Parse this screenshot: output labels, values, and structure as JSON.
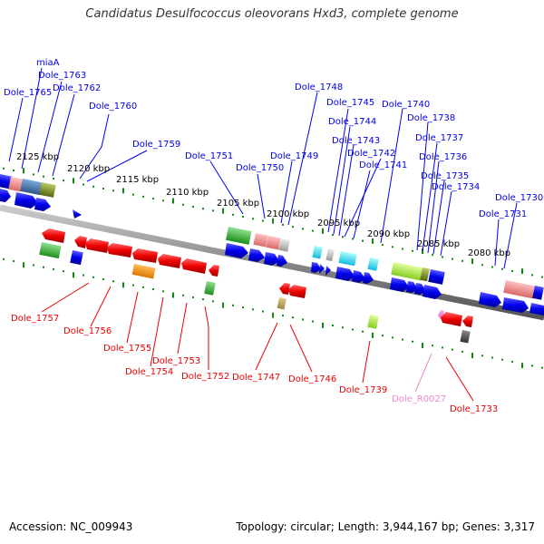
{
  "title": "Candidatus Desulfococcus oleovorans Hxd3, complete genome",
  "footer": {
    "accession": "Accession: NC_009943",
    "topology": "Topology: circular; Length: 3,944,167 bp; Genes: 3,317"
  },
  "colors": {
    "forward": "#0000ee",
    "reverse": "#ee0000",
    "rna": "#ee88cc",
    "scale": "#118811",
    "backbone": "#888888"
  },
  "scale_labels": [
    "2125 kbp",
    "2120 kbp",
    "2115 kbp",
    "2110 kbp",
    "2105 kbp",
    "2100 kbp",
    "2095 kbp",
    "2090 kbp",
    "2085 kbp",
    "2080 kbp"
  ],
  "top_labels": [
    "miaA",
    "Dole_1763",
    "Dole_1765",
    "Dole_1762",
    "Dole_1760",
    "Dole_1759",
    "Dole_1751",
    "Dole_1750",
    "Dole_1749",
    "Dole_1748",
    "Dole_1745",
    "Dole_1744",
    "Dole_1743",
    "Dole_1742",
    "Dole_1741",
    "Dole_1740",
    "Dole_1738",
    "Dole_1737",
    "Dole_1736",
    "Dole_1735",
    "Dole_1734",
    "Dole_1730",
    "Dole_1731"
  ],
  "bottom_labels": [
    "Dole_1757",
    "Dole_1756",
    "Dole_1755",
    "Dole_1754",
    "Dole_1753",
    "Dole_1752",
    "Dole_1747",
    "Dole_1746",
    "Dole_1739",
    "Dole_R0027",
    "Dole_1733"
  ]
}
